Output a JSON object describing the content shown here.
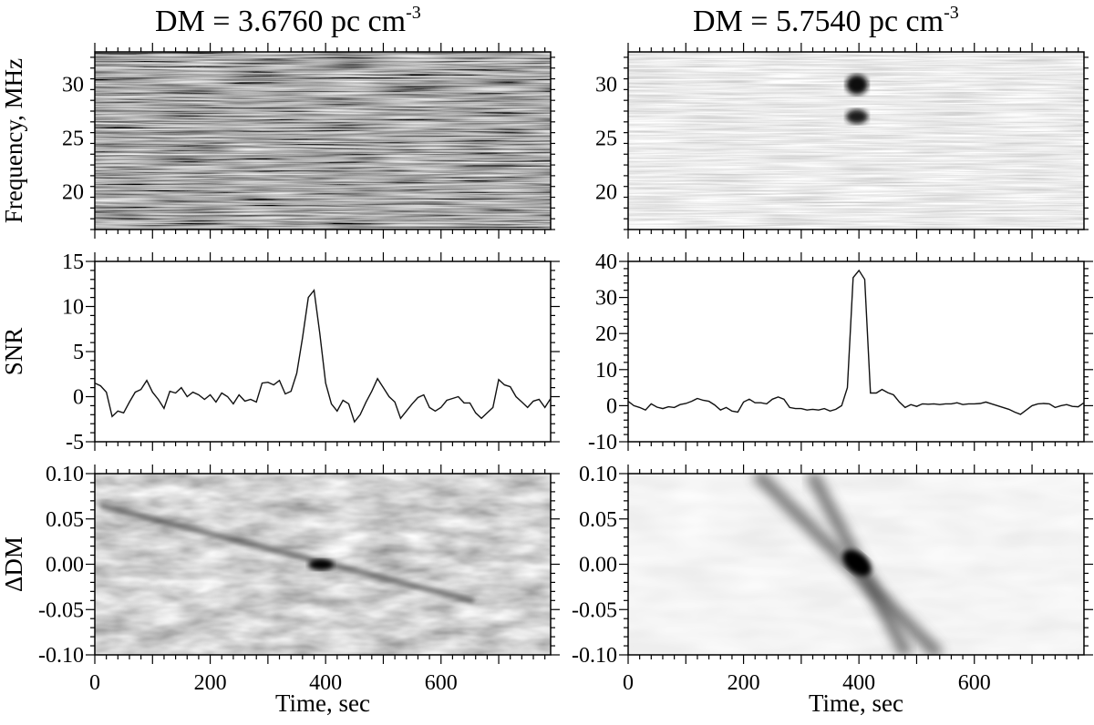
{
  "columns": [
    {
      "title_main": "DM = 3.6760 pc cm",
      "title_sup": "-3"
    },
    {
      "title_main": "DM = 5.7540 pc cm",
      "title_sup": "-3"
    }
  ],
  "chart_data": [
    {
      "type": "heatmap",
      "panel": "dynamic-spectrum-dm-3.6760",
      "title": "DM = 3.6760 pc cm-3",
      "ylabel": "Frequency, MHz",
      "xlim": [
        0,
        790
      ],
      "ylim": [
        16.5,
        33
      ],
      "yticks": [
        20,
        25,
        30
      ],
      "colormap": "grayscale",
      "description_values": {
        "pulse_time_sec": null
      }
    },
    {
      "type": "heatmap",
      "panel": "dynamic-spectrum-dm-5.7540",
      "title": "DM = 5.7540 pc cm-3",
      "ylabel": "",
      "xlim": [
        0,
        790
      ],
      "ylim": [
        16.5,
        33
      ],
      "yticks": [
        20,
        25,
        30
      ],
      "colormap": "grayscale",
      "features": [
        {
          "time_sec": 400,
          "freq_mhz": 30.1
        },
        {
          "time_sec": 400,
          "freq_mhz": 27.0
        }
      ]
    },
    {
      "type": "line",
      "panel": "snr-dm-3.6760",
      "ylabel": "SNR",
      "xlim": [
        0,
        790
      ],
      "ylim": [
        -5,
        15
      ],
      "yticks": [
        -5,
        0,
        5,
        10,
        15
      ],
      "x": [
        0,
        10,
        20,
        30,
        40,
        50,
        60,
        70,
        80,
        90,
        100,
        110,
        120,
        130,
        140,
        150,
        160,
        170,
        180,
        190,
        200,
        210,
        220,
        230,
        240,
        250,
        260,
        270,
        280,
        290,
        300,
        310,
        320,
        330,
        340,
        350,
        360,
        370,
        380,
        390,
        400,
        410,
        420,
        430,
        440,
        450,
        460,
        470,
        480,
        490,
        500,
        510,
        520,
        530,
        540,
        550,
        560,
        570,
        580,
        590,
        600,
        610,
        620,
        630,
        640,
        650,
        660,
        670,
        680,
        690,
        700,
        710,
        720,
        730,
        740,
        750,
        760,
        770,
        780,
        790
      ],
      "y": [
        1.5,
        1.2,
        0.5,
        -2.2,
        -1.6,
        -1.8,
        -0.6,
        0.5,
        0.8,
        1.8,
        0.5,
        -0.3,
        -1.3,
        0.6,
        0.4,
        1.0,
        0.0,
        0.5,
        0.2,
        -0.3,
        0.2,
        -0.6,
        0.4,
        0.0,
        -0.8,
        0.2,
        -0.5,
        -0.3,
        -0.6,
        1.5,
        1.6,
        1.3,
        1.8,
        0.3,
        0.6,
        2.6,
        6.5,
        11.0,
        11.8,
        7.0,
        1.5,
        -0.8,
        -1.6,
        -0.4,
        -0.8,
        -2.8,
        -2.0,
        -0.6,
        0.6,
        2.0,
        1.0,
        0.0,
        -0.6,
        -2.4,
        -1.6,
        -0.8,
        -0.1,
        0.2,
        -1.2,
        -1.6,
        -1.2,
        -0.4,
        -0.2,
        0.0,
        -0.7,
        -0.7,
        -1.8,
        -2.4,
        -1.8,
        -1.2,
        1.9,
        1.3,
        1.1,
        0.0,
        -0.6,
        -1.2,
        -0.5,
        -0.3,
        -1.2,
        -0.2
      ]
    },
    {
      "type": "line",
      "panel": "snr-dm-5.7540",
      "ylabel": "",
      "xlim": [
        0,
        790
      ],
      "ylim": [
        -10,
        40
      ],
      "yticks": [
        -10,
        0,
        10,
        20,
        30,
        40
      ],
      "x": [
        0,
        10,
        20,
        30,
        40,
        50,
        60,
        70,
        80,
        90,
        100,
        110,
        120,
        130,
        140,
        150,
        160,
        170,
        180,
        190,
        200,
        210,
        220,
        230,
        240,
        250,
        260,
        270,
        280,
        290,
        300,
        310,
        320,
        330,
        340,
        350,
        360,
        370,
        380,
        390,
        400,
        410,
        420,
        430,
        440,
        450,
        460,
        470,
        480,
        490,
        500,
        510,
        520,
        530,
        540,
        550,
        560,
        570,
        580,
        590,
        600,
        610,
        620,
        630,
        640,
        650,
        660,
        670,
        680,
        690,
        700,
        710,
        720,
        730,
        740,
        750,
        760,
        770,
        780,
        790
      ],
      "y": [
        1.2,
        0.0,
        -0.5,
        -1.2,
        0.5,
        -0.4,
        -0.8,
        -0.3,
        -0.5,
        0.3,
        0.6,
        1.2,
        2.0,
        1.5,
        1.2,
        0.2,
        -1.2,
        -0.5,
        -1.5,
        -1.8,
        1.0,
        1.8,
        0.8,
        0.8,
        0.5,
        1.8,
        2.4,
        1.8,
        -0.5,
        -0.8,
        -0.8,
        -1.2,
        -1.0,
        -1.2,
        -0.8,
        -1.5,
        -1.0,
        0.0,
        5.0,
        35.5,
        37.5,
        35.0,
        3.5,
        3.5,
        4.5,
        3.6,
        3.0,
        1.0,
        -0.5,
        0.3,
        -0.2,
        0.5,
        0.4,
        0.5,
        0.3,
        0.5,
        0.5,
        0.8,
        0.3,
        0.5,
        0.5,
        0.6,
        1.0,
        0.5,
        0.0,
        -0.5,
        -1.0,
        -1.8,
        -2.4,
        -1.2,
        0.0,
        0.5,
        0.6,
        0.5,
        -0.5,
        0.0,
        0.3,
        -0.2,
        -0.3,
        0.8
      ]
    },
    {
      "type": "heatmap",
      "panel": "dm-time-dm-3.6760",
      "ylabel": "ΔDM",
      "xlabel": "Time, sec",
      "xlim": [
        0,
        790
      ],
      "ylim": [
        -0.1,
        0.1
      ],
      "xticks": [
        0,
        200,
        400,
        600
      ],
      "yticks": [
        -0.1,
        -0.05,
        0.0,
        0.05,
        0.1
      ],
      "ytick_labels": [
        "-0.10",
        "-0.05",
        "0.00",
        "0.05",
        "0.10"
      ],
      "colormap": "grayscale",
      "features": [
        {
          "time_sec": 400,
          "ddm": 0.0
        }
      ]
    },
    {
      "type": "heatmap",
      "panel": "dm-time-dm-5.7540",
      "ylabel": "",
      "xlabel": "Time, sec",
      "xlim": [
        0,
        790
      ],
      "ylim": [
        -0.1,
        0.1
      ],
      "xticks": [
        0,
        200,
        400,
        600
      ],
      "yticks": [
        -0.1,
        -0.05,
        0.0,
        0.05,
        0.1
      ],
      "ytick_labels": [
        "-0.10",
        "-0.05",
        "0.00",
        "0.05",
        "0.10"
      ],
      "colormap": "grayscale",
      "features": [
        {
          "time_sec": 400,
          "ddm": 0.0
        }
      ]
    }
  ]
}
